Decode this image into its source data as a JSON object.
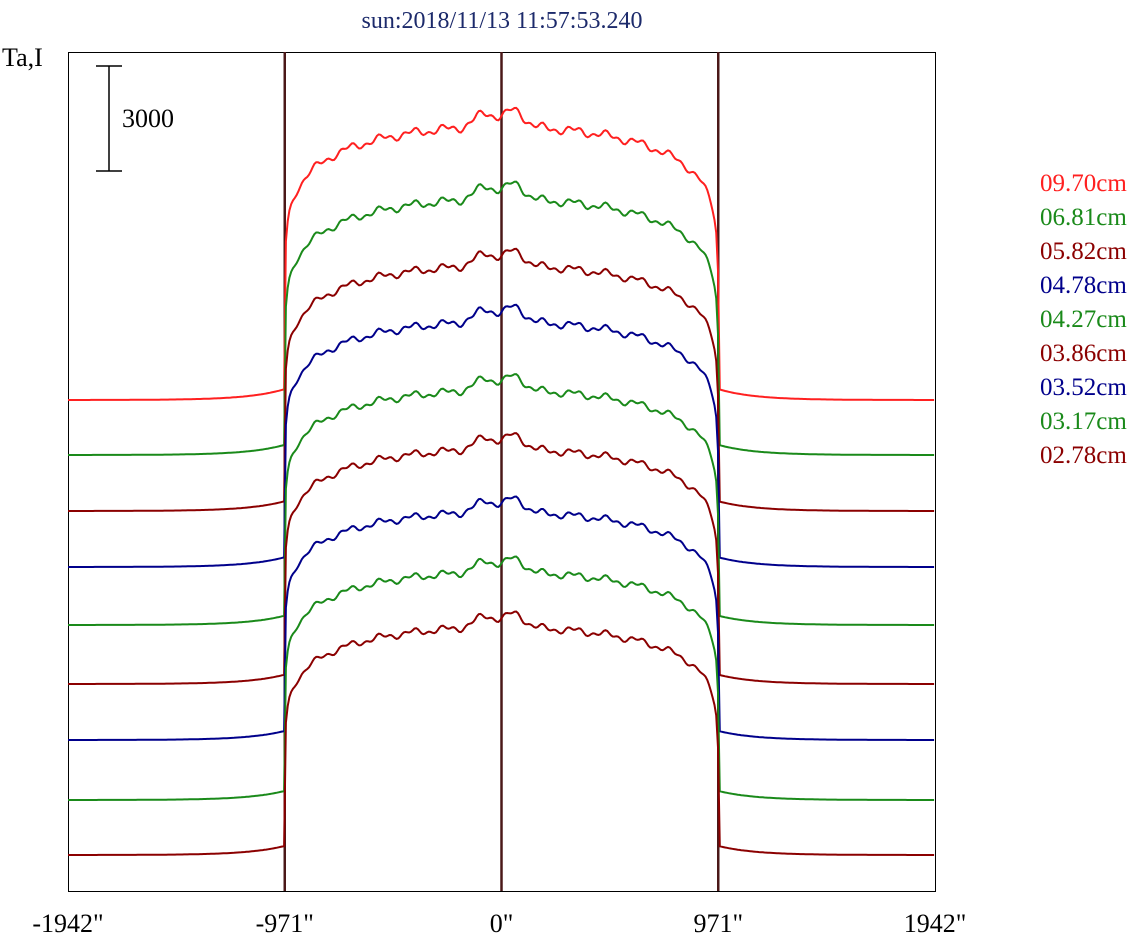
{
  "title": "sun:2018/11/13 11:57:53.240",
  "ylabel": "Ta,I",
  "scale_bar_label": "3000",
  "colors": {
    "red": "#ff2020",
    "green": "#1a8a1a",
    "maroon": "#8b0000",
    "navy": "#00008b",
    "axis": "#000000",
    "vline": "#4a1818",
    "title": "#1c2a6b"
  },
  "chart_data": {
    "type": "line",
    "title": "sun:2018/11/13 11:57:53.240",
    "xlabel": "",
    "ylabel": "Ta,I",
    "xlim": [
      -1942,
      1942
    ],
    "x_ticks": [
      -1942,
      -971,
      0,
      971,
      1942
    ],
    "x_tick_labels": [
      "-1942\"",
      "-971\"",
      "0\"",
      "971\"",
      "1942\""
    ],
    "vertical_lines": [
      -971,
      0,
      971
    ],
    "scale_bar": 3000,
    "legend_position": "right",
    "series": [
      {
        "name": "09.70cm",
        "color": "red",
        "amplitude": 7800
      },
      {
        "name": "06.81cm",
        "color": "green",
        "amplitude": 7300
      },
      {
        "name": "05.82cm",
        "color": "maroon",
        "amplitude": 7000
      },
      {
        "name": "04.78cm",
        "color": "navy",
        "amplitude": 7000
      },
      {
        "name": "04.27cm",
        "color": "green",
        "amplitude": 6700
      },
      {
        "name": "03.86cm",
        "color": "maroon",
        "amplitude": 6700
      },
      {
        "name": "03.52cm",
        "color": "navy",
        "amplitude": 6500
      },
      {
        "name": "03.17cm",
        "color": "green",
        "amplitude": 6500
      },
      {
        "name": "02.78cm",
        "color": "maroon",
        "amplitude": 6500
      }
    ]
  }
}
